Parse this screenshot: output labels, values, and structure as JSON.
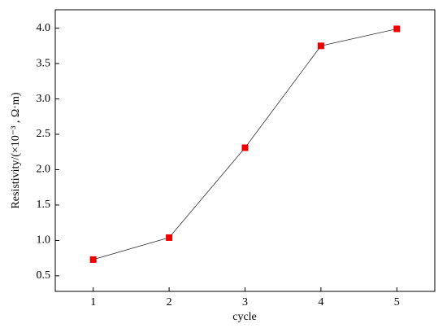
{
  "chart_data": {
    "type": "line",
    "x_label": "cycle",
    "y_label": "Resistivity/(×10⁻³ , Ω·m)",
    "x": [
      1,
      2,
      3,
      4,
      5
    ],
    "series": [
      {
        "color": "#ee0000",
        "values": [
          0.73,
          1.04,
          2.31,
          3.75,
          3.99
        ]
      }
    ],
    "xlim": [
      0.5,
      5.5
    ],
    "xticks": [
      1,
      2,
      3,
      4,
      5
    ],
    "ylim": [
      0.28,
      4.26
    ],
    "yticks": [
      0.5,
      {
        "value": 1,
        "label": "1.0"
      },
      1.5,
      {
        "value": 2,
        "label": "2.0"
      },
      2.5,
      {
        "value": 3,
        "label": "3.0"
      },
      3.5,
      {
        "value": 4,
        "label": "4.0"
      }
    ]
  }
}
